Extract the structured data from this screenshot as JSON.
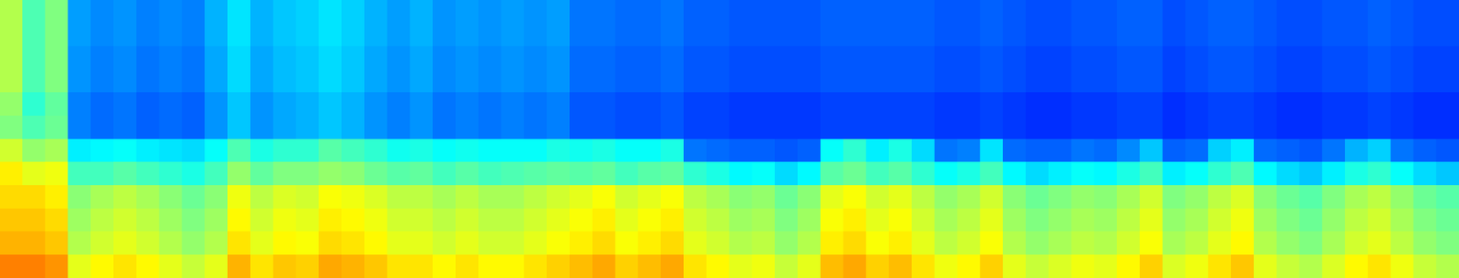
{
  "chart_data": {
    "type": "heatmap",
    "color": "jet",
    "tick_labels": false,
    "zlim": [
      0,
      100
    ],
    "cells": [
      [
        55,
        45,
        50,
        28,
        26,
        27,
        25,
        26,
        25,
        30,
        35,
        30,
        32,
        33,
        35,
        33,
        30,
        28,
        30,
        27,
        28,
        27,
        28,
        27,
        28,
        24,
        24,
        23,
        23,
        24,
        22,
        22,
        21,
        21,
        21,
        21,
        22,
        22,
        22,
        22,
        22,
        21,
        21,
        22,
        21,
        20,
        20,
        21,
        21,
        22,
        22,
        20,
        21,
        22,
        22,
        21,
        20,
        20,
        21,
        21,
        22,
        21,
        20,
        20
      ],
      [
        55,
        45,
        50,
        28,
        26,
        27,
        25,
        26,
        25,
        30,
        35,
        30,
        32,
        33,
        35,
        33,
        30,
        28,
        30,
        27,
        28,
        27,
        28,
        27,
        28,
        24,
        24,
        23,
        23,
        24,
        22,
        22,
        21,
        21,
        21,
        21,
        22,
        22,
        22,
        22,
        22,
        21,
        21,
        22,
        21,
        20,
        20,
        21,
        21,
        22,
        22,
        20,
        21,
        22,
        22,
        21,
        20,
        20,
        21,
        21,
        22,
        21,
        20,
        20
      ],
      [
        55,
        45,
        50,
        27,
        25,
        26,
        24,
        25,
        24,
        29,
        34,
        29,
        31,
        32,
        34,
        32,
        29,
        27,
        29,
        26,
        27,
        26,
        27,
        26,
        27,
        23,
        23,
        22,
        22,
        23,
        21,
        21,
        20,
        20,
        20,
        20,
        21,
        21,
        21,
        21,
        21,
        20,
        20,
        21,
        20,
        19,
        19,
        20,
        20,
        21,
        21,
        19,
        20,
        21,
        21,
        20,
        19,
        19,
        20,
        20,
        21,
        20,
        19,
        19
      ],
      [
        55,
        45,
        50,
        27,
        25,
        26,
        24,
        25,
        24,
        29,
        34,
        29,
        31,
        32,
        34,
        32,
        29,
        27,
        29,
        26,
        27,
        26,
        27,
        26,
        27,
        23,
        23,
        22,
        22,
        23,
        21,
        21,
        20,
        20,
        20,
        20,
        21,
        21,
        21,
        21,
        21,
        20,
        20,
        21,
        20,
        19,
        19,
        20,
        20,
        21,
        21,
        19,
        20,
        21,
        21,
        20,
        19,
        19,
        20,
        20,
        21,
        20,
        19,
        19
      ],
      [
        52,
        42,
        47,
        25,
        23,
        24,
        22,
        23,
        22,
        27,
        32,
        27,
        29,
        30,
        32,
        30,
        27,
        25,
        27,
        24,
        25,
        24,
        25,
        24,
        25,
        21,
        21,
        20,
        20,
        21,
        19,
        19,
        18,
        18,
        18,
        18,
        19,
        19,
        19,
        19,
        19,
        18,
        18,
        19,
        18,
        17,
        17,
        18,
        18,
        19,
        19,
        17,
        18,
        19,
        19,
        18,
        17,
        17,
        18,
        18,
        19,
        18,
        17,
        17
      ],
      [
        50,
        45,
        48,
        25,
        23,
        24,
        22,
        23,
        22,
        27,
        32,
        27,
        29,
        30,
        32,
        30,
        27,
        25,
        27,
        24,
        25,
        24,
        25,
        24,
        25,
        21,
        21,
        20,
        20,
        21,
        19,
        19,
        18,
        18,
        18,
        18,
        19,
        19,
        19,
        19,
        19,
        18,
        18,
        19,
        18,
        17,
        17,
        18,
        18,
        19,
        19,
        17,
        18,
        19,
        19,
        18,
        17,
        17,
        18,
        18,
        19,
        18,
        17,
        17
      ],
      [
        58,
        52,
        54,
        36,
        37,
        38,
        36,
        35,
        34,
        38,
        45,
        40,
        42,
        42,
        46,
        44,
        42,
        39,
        40,
        38,
        39,
        38,
        38,
        38,
        40,
        39,
        40,
        38,
        38,
        40,
        24,
        23,
        22,
        22,
        21,
        22,
        38,
        42,
        36,
        40,
        34,
        24,
        25,
        35,
        23,
        22,
        22,
        24,
        23,
        26,
        32,
        22,
        23,
        33,
        36,
        23,
        22,
        21,
        24,
        30,
        33,
        24,
        22,
        21
      ],
      [
        64,
        60,
        61,
        44,
        44,
        46,
        44,
        42,
        40,
        44,
        52,
        47,
        50,
        50,
        52,
        51,
        48,
        46,
        47,
        44,
        46,
        44,
        45,
        46,
        47,
        46,
        47,
        44,
        46,
        47,
        42,
        40,
        37,
        38,
        34,
        37,
        46,
        48,
        44,
        46,
        42,
        38,
        40,
        44,
        37,
        34,
        36,
        38,
        37,
        40,
        44,
        36,
        38,
        42,
        45,
        37,
        34,
        32,
        36,
        40,
        42,
        38,
        34,
        32
      ],
      [
        66,
        66,
        64,
        51,
        54,
        56,
        54,
        51,
        48,
        51,
        61,
        56,
        59,
        58,
        62,
        61,
        59,
        56,
        56,
        54,
        56,
        54,
        54,
        56,
        58,
        60,
        62,
        58,
        60,
        62,
        56,
        54,
        51,
        52,
        48,
        51,
        60,
        62,
        58,
        60,
        56,
        52,
        54,
        58,
        51,
        48,
        50,
        52,
        51,
        54,
        58,
        50,
        52,
        56,
        59,
        51,
        48,
        46,
        50,
        54,
        56,
        52,
        48,
        46
      ],
      [
        68,
        68,
        66,
        53,
        56,
        58,
        56,
        53,
        50,
        53,
        63,
        58,
        61,
        60,
        64,
        63,
        61,
        58,
        58,
        56,
        58,
        56,
        56,
        58,
        60,
        62,
        64,
        60,
        62,
        64,
        58,
        56,
        53,
        54,
        50,
        53,
        62,
        64,
        60,
        62,
        58,
        54,
        56,
        60,
        53,
        50,
        52,
        54,
        53,
        56,
        60,
        52,
        54,
        58,
        61,
        53,
        50,
        48,
        52,
        56,
        58,
        54,
        50,
        48
      ],
      [
        70,
        70,
        68,
        55,
        58,
        60,
        58,
        55,
        52,
        55,
        65,
        60,
        63,
        62,
        66,
        65,
        63,
        60,
        60,
        58,
        60,
        58,
        58,
        60,
        62,
        64,
        66,
        62,
        64,
        66,
        60,
        58,
        55,
        56,
        52,
        55,
        64,
        66,
        62,
        64,
        60,
        56,
        58,
        62,
        55,
        52,
        54,
        56,
        55,
        58,
        62,
        54,
        56,
        60,
        63,
        55,
        52,
        50,
        54,
        58,
        60,
        56,
        52,
        50
      ],
      [
        75,
        75,
        73,
        60,
        63,
        65,
        63,
        60,
        57,
        60,
        70,
        65,
        68,
        67,
        71,
        70,
        68,
        65,
        65,
        63,
        65,
        63,
        63,
        65,
        67,
        69,
        71,
        67,
        69,
        71,
        65,
        63,
        60,
        61,
        57,
        60,
        69,
        71,
        67,
        69,
        65,
        61,
        63,
        67,
        60,
        57,
        59,
        61,
        60,
        63,
        67,
        59,
        61,
        65,
        68,
        60,
        57,
        55,
        59,
        63,
        65,
        61,
        57,
        55
      ]
    ]
  }
}
